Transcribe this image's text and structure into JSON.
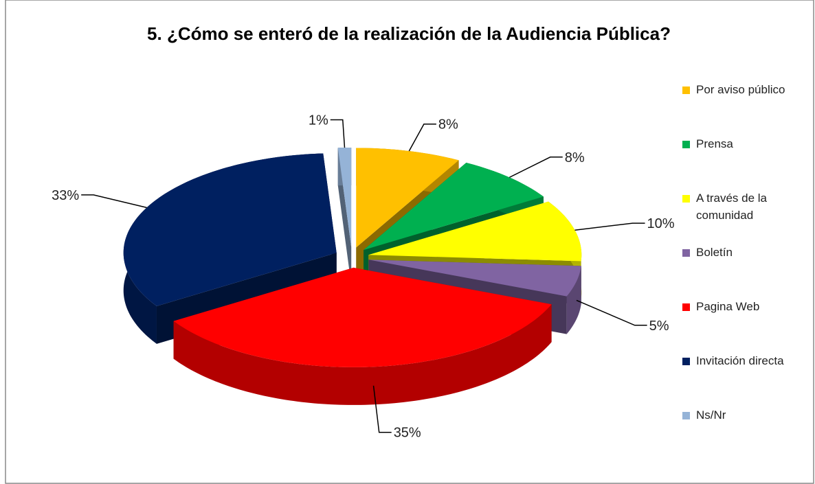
{
  "chart_data": {
    "type": "pie",
    "title": "5. ¿Cómo se enteró de la realización de la Audiencia Pública?",
    "categories": [
      "Por aviso público",
      "Prensa",
      "A través de la comunidad",
      "Boletín",
      "Pagina Web",
      "Invitación directa",
      "Ns/Nr"
    ],
    "values": [
      8,
      8,
      10,
      5,
      35,
      33,
      1
    ],
    "value_labels": [
      "8%",
      "8%",
      "10%",
      "5%",
      "35%",
      "33%",
      "1%"
    ],
    "colors": [
      "#FFC000",
      "#00B050",
      "#FFFF00",
      "#8064A2",
      "#FF0000",
      "#002060",
      "#95B3D7"
    ],
    "legend": "right"
  }
}
